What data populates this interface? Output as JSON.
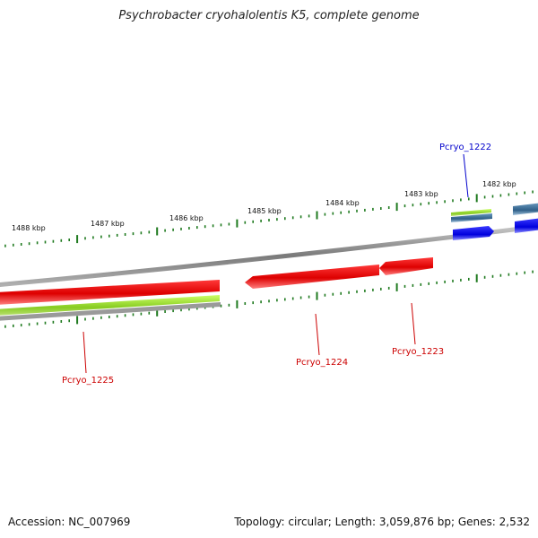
{
  "title": "Psychrobacter cryohalolentis K5, complete genome",
  "footer": {
    "accession": "Accession: NC_007969",
    "summary": "Topology: circular; Length: 3,059,876 bp; Genes: 2,532"
  },
  "ticks": [
    "1488 kbp",
    "1487 kbp",
    "1486 kbp",
    "1485 kbp",
    "1484 kbp",
    "1483 kbp",
    "1482 kbp"
  ],
  "genes": [
    {
      "label": "Pcryo_1222",
      "color": "#0000cc"
    },
    {
      "label": "Pcryo_1223",
      "color": "#cc0000"
    },
    {
      "label": "Pcryo_1224",
      "color": "#cc0000"
    },
    {
      "label": "Pcryo_1225",
      "color": "#cc0000"
    }
  ],
  "colors": {
    "backbone": "#8a8a8a",
    "cds_red": "#e00000",
    "cds_green": "#99dd33",
    "cds_blue": "#0000ee",
    "steel_blue": "#3a6f9a",
    "tick": "#1f7a1f"
  }
}
